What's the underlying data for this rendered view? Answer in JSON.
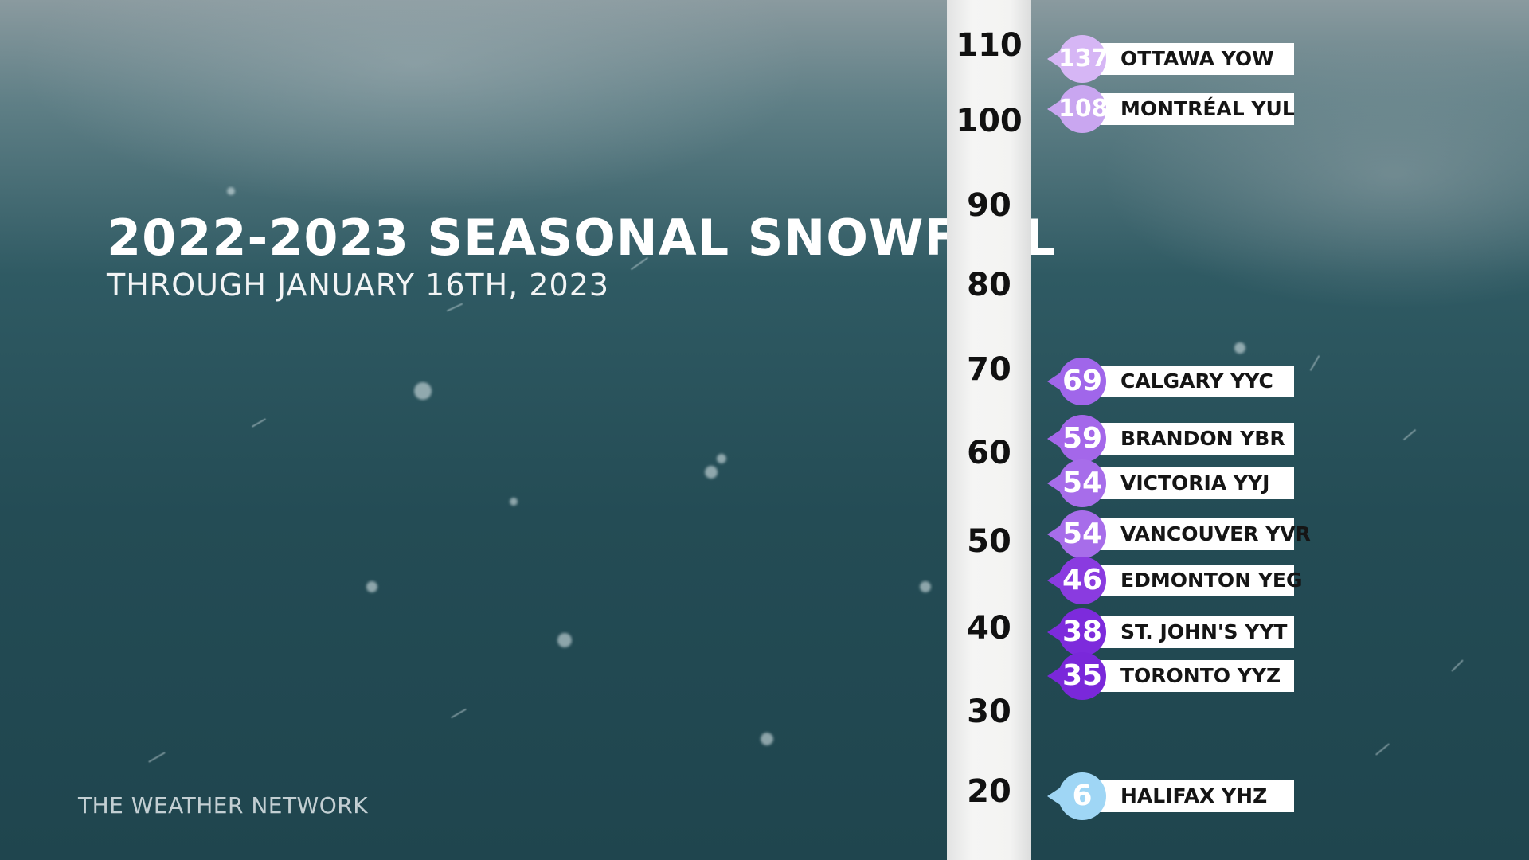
{
  "header": {
    "title": "2022-2023 SEASONAL SNOWFALL",
    "subtitle": "THROUGH JANUARY 16TH, 2023"
  },
  "brand": "THE WEATHER NETWORK",
  "chart_data": {
    "type": "bar",
    "title": "2022-2023 SEASONAL SNOWFALL",
    "subtitle": "THROUGH JANUARY 16TH, 2023",
    "y_ticks": [
      110,
      100,
      90,
      80,
      70,
      60,
      50,
      40,
      30,
      20
    ],
    "ylim": [
      20,
      110
    ],
    "categories": [
      "OTTAWA YOW",
      "MONTRÉAL YUL",
      "CALGARY YYC",
      "BRANDON YBR",
      "VICTORIA YYJ",
      "VANCOUVER YVR",
      "EDMONTON YEG",
      "ST. JOHN'S YYT",
      "TORONTO YYZ",
      "HALIFAX YHZ"
    ],
    "values": [
      137,
      108,
      69,
      59,
      54,
      54,
      46,
      38,
      35,
      6
    ],
    "value_labels": [
      "137",
      "108",
      "69",
      "59",
      "54",
      "54",
      "46",
      "38",
      "35",
      "6"
    ],
    "colors": [
      "#d6b6f5",
      "#c9a6f0",
      "#a066ea",
      "#a467ea",
      "#a76dea",
      "#a76dea",
      "#8a3be0",
      "#7d2bdc",
      "#7a28da",
      "#9fd6f5"
    ]
  }
}
